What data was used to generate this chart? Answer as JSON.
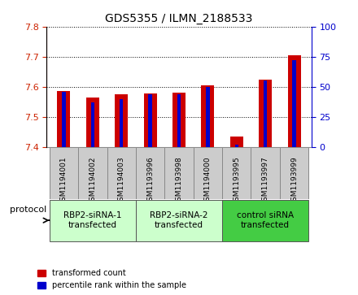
{
  "title": "GDS5355 / ILMN_2188533",
  "samples": [
    "GSM1194001",
    "GSM1194002",
    "GSM1194003",
    "GSM1193996",
    "GSM1193998",
    "GSM1194000",
    "GSM1193995",
    "GSM1193997",
    "GSM1193999"
  ],
  "red_values": [
    7.585,
    7.565,
    7.575,
    7.578,
    7.582,
    7.605,
    7.435,
    7.625,
    7.705
  ],
  "blue_values": [
    46,
    37,
    40,
    44,
    44,
    50,
    2,
    55,
    72
  ],
  "ylim_left": [
    7.4,
    7.8
  ],
  "ylim_right": [
    0,
    100
  ],
  "yticks_left": [
    7.4,
    7.5,
    7.6,
    7.7,
    7.8
  ],
  "yticks_right": [
    0,
    25,
    50,
    75,
    100
  ],
  "groups": [
    {
      "label": "RBP2-siRNA-1\ntransfected",
      "start": 0,
      "end": 3,
      "color": "#ccffcc"
    },
    {
      "label": "RBP2-siRNA-2\ntransfected",
      "start": 3,
      "end": 6,
      "color": "#ccffcc"
    },
    {
      "label": "control siRNA\ntransfected",
      "start": 6,
      "end": 9,
      "color": "#44cc44"
    }
  ],
  "protocol_label": "protocol",
  "red_color": "#cc0000",
  "blue_color": "#0000cc",
  "red_bar_width": 0.45,
  "blue_bar_width": 0.12,
  "left_axis_color": "#cc2200",
  "right_axis_color": "#0000cc",
  "legend_red_label": "transformed count",
  "legend_blue_label": "percentile rank within the sample",
  "grid_color": "#000000",
  "sample_area_color": "#cccccc",
  "plot_bg": "#ffffff"
}
